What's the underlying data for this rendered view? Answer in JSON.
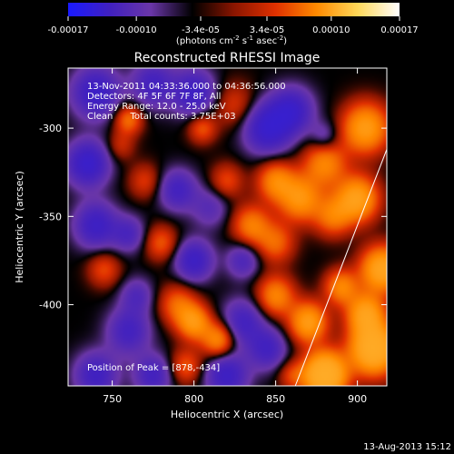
{
  "chart_data": {
    "type": "heatmap",
    "title": "Reconstructed RHESSI Image",
    "xlabel": "Heliocentric X (arcsec)",
    "ylabel": "Heliocentric Y (arcsec)",
    "xlim": [
      723,
      918
    ],
    "ylim": [
      -446,
      -266
    ],
    "x_ticks": [
      750,
      800,
      850,
      900
    ],
    "y_ticks": [
      -400,
      -350,
      -300
    ],
    "colorbar": {
      "tick_labels": [
        "-0.00017",
        "-0.00010",
        "-3.4e-05",
        "3.4e-05",
        "0.00010",
        "0.00017"
      ],
      "tick_values": [
        -0.00017,
        -0.0001,
        -3.4e-05,
        3.4e-05,
        0.0001,
        0.00017
      ],
      "range": [
        -0.00017,
        0.00017
      ],
      "unit_text": "(photons cm",
      "unit_exp1": "-2",
      "unit_mid": " s",
      "unit_exp2": "-1",
      "unit_tail": " asec",
      "unit_exp3": "-2",
      "unit_close": ")",
      "colors": [
        "#1a1aff",
        "#4020c0",
        "#6a36a8",
        "#000000",
        "#8a1500",
        "#e03000",
        "#ff8a00",
        "#ffd85a",
        "#ffffff"
      ]
    },
    "annotations": [
      "13-Nov-2011 04:33:36.000 to 04:36:56.000",
      "Detectors: 4F 5F 6F 7F 8F, All",
      "Energy Range: 12.0 - 25.0 keV",
      "Clean      Total counts: 3.75E+03"
    ],
    "peak_label": "Position of Peak = [878,-434]",
    "peak": [
      878,
      -434
    ],
    "limb_line": [
      [
        862,
        -446
      ],
      [
        918,
        -312
      ]
    ],
    "sources": [
      [
        740,
        -280,
        -1.3,
        10
      ],
      [
        775,
        -275,
        -1.0,
        9
      ],
      [
        800,
        -280,
        -1.2,
        9
      ],
      [
        825,
        -287,
        0.6,
        9
      ],
      [
        845,
        -300,
        -1.4,
        10
      ],
      [
        860,
        -290,
        -1.2,
        9
      ],
      [
        880,
        -320,
        1.2,
        9
      ],
      [
        905,
        -300,
        1.6,
        10
      ],
      [
        900,
        -340,
        1.7,
        9
      ],
      [
        915,
        -380,
        1.9,
        9
      ],
      [
        910,
        -425,
        2.4,
        10
      ],
      [
        880,
        -440,
        2.7,
        9
      ],
      [
        870,
        -410,
        1.6,
        8
      ],
      [
        885,
        -350,
        1.0,
        8
      ],
      [
        865,
        -340,
        1.4,
        9
      ],
      [
        850,
        -330,
        1.2,
        8
      ],
      [
        835,
        -355,
        1.1,
        8
      ],
      [
        850,
        -365,
        0.9,
        8
      ],
      [
        820,
        -330,
        0.7,
        7
      ],
      [
        810,
        -345,
        -0.6,
        8
      ],
      [
        790,
        -335,
        -1.0,
        8
      ],
      [
        770,
        -330,
        0.6,
        7
      ],
      [
        755,
        -310,
        0.5,
        6
      ],
      [
        760,
        -295,
        1.0,
        6
      ],
      [
        735,
        -320,
        -1.4,
        9
      ],
      [
        740,
        -355,
        -1.2,
        9
      ],
      [
        745,
        -380,
        0.7,
        7
      ],
      [
        760,
        -360,
        -0.8,
        7
      ],
      [
        780,
        -365,
        0.8,
        7
      ],
      [
        800,
        -375,
        -1.2,
        8
      ],
      [
        790,
        -400,
        0.9,
        8
      ],
      [
        800,
        -410,
        1.4,
        7
      ],
      [
        815,
        -420,
        1.3,
        7
      ],
      [
        830,
        -410,
        -1.0,
        9
      ],
      [
        850,
        -395,
        1.2,
        8
      ],
      [
        845,
        -425,
        -1.0,
        8
      ],
      [
        760,
        -415,
        -1.0,
        9
      ],
      [
        740,
        -440,
        -1.1,
        9
      ],
      [
        775,
        -440,
        -1.0,
        8
      ],
      [
        795,
        -435,
        0.8,
        7
      ],
      [
        820,
        -440,
        -1.2,
        9
      ],
      [
        860,
        -440,
        0.6,
        6
      ],
      [
        905,
        -405,
        1.6,
        8
      ],
      [
        890,
        -390,
        1.2,
        7
      ],
      [
        805,
        -300,
        0.8,
        6
      ],
      [
        765,
        -395,
        -0.7,
        7
      ],
      [
        830,
        -375,
        -0.8,
        7
      ],
      [
        880,
        -305,
        -0.6,
        6
      ]
    ],
    "timestamp": "13-Aug-2013 15:12"
  }
}
